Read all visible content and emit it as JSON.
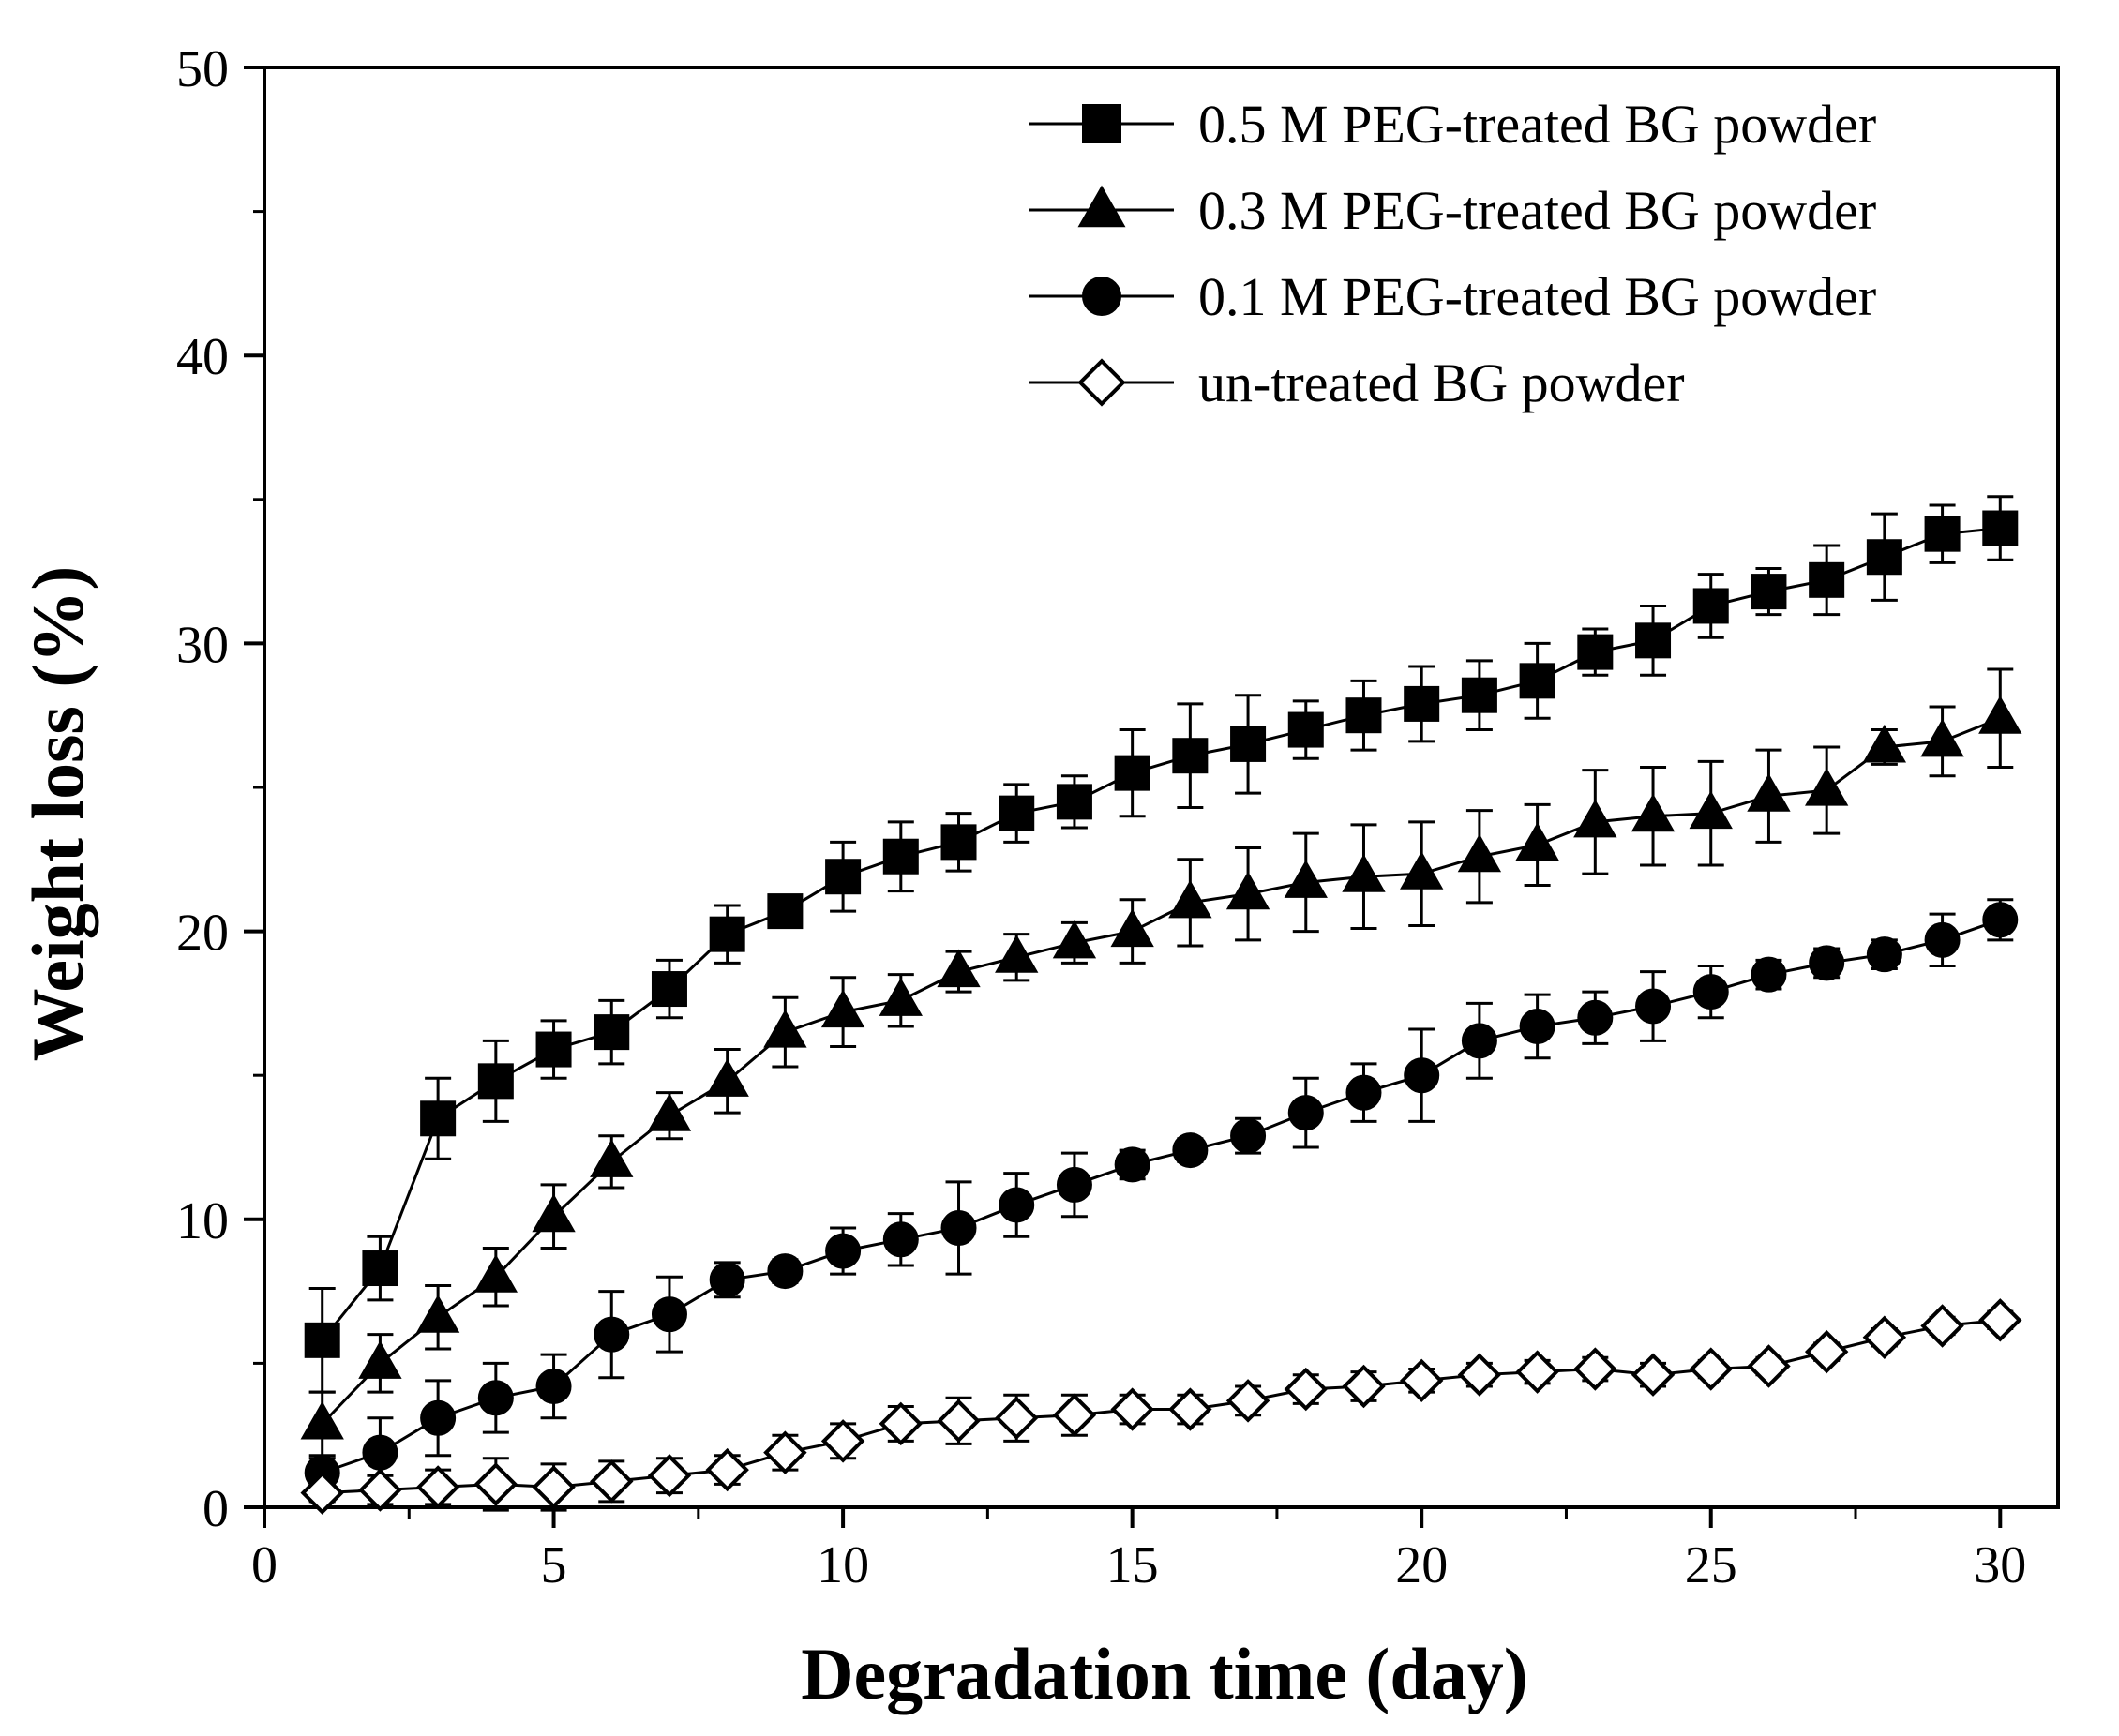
{
  "chart_data": {
    "type": "line",
    "title": "",
    "xlabel": "Degradation time (day)",
    "ylabel": "Weight loss (%)",
    "xlim": [
      0,
      31
    ],
    "ylim": [
      0,
      50
    ],
    "xticks": [
      0,
      5,
      10,
      15,
      20,
      25,
      30
    ],
    "xtick_labels": [
      "0",
      "5",
      "10",
      "15",
      "20",
      "25",
      "30"
    ],
    "yticks": [
      0,
      10,
      20,
      30,
      40,
      50
    ],
    "ytick_labels": [
      "0",
      "10",
      "20",
      "30",
      "40",
      "50"
    ],
    "grid": false,
    "legend_position": "top-right",
    "x": [
      1,
      2,
      3,
      4,
      5,
      6,
      7,
      8,
      9,
      10,
      11,
      12,
      13,
      14,
      15,
      16,
      17,
      18,
      19,
      20,
      21,
      22,
      23,
      24,
      25,
      26,
      27,
      28,
      29,
      30
    ],
    "series": [
      {
        "name": "0.5 M PEG-treated BG powder",
        "marker": "square",
        "filled": true,
        "values": [
          5.8,
          8.3,
          13.5,
          14.8,
          15.9,
          16.5,
          18.0,
          19.9,
          20.7,
          21.9,
          22.6,
          23.1,
          24.1,
          24.5,
          25.5,
          26.1,
          26.5,
          27.0,
          27.5,
          27.9,
          28.2,
          28.7,
          29.7,
          30.1,
          31.3,
          31.8,
          32.2,
          33.0,
          33.8,
          34.0
        ],
        "errors": [
          1.8,
          1.1,
          1.4,
          1.4,
          1.0,
          1.1,
          1.0,
          1.0,
          0.5,
          1.2,
          1.2,
          1.0,
          1.0,
          0.9,
          1.5,
          1.8,
          1.7,
          1.0,
          1.2,
          1.3,
          1.2,
          1.3,
          0.8,
          1.2,
          1.1,
          0.8,
          1.2,
          1.5,
          1.0,
          1.1
        ]
      },
      {
        "name": "0.3 M PEG-treated BG powder",
        "marker": "triangle",
        "filled": true,
        "values": [
          2.9,
          5.0,
          6.6,
          8.0,
          10.1,
          12.0,
          13.6,
          14.8,
          16.5,
          17.2,
          17.6,
          18.6,
          19.1,
          19.6,
          20.0,
          21.0,
          21.3,
          21.7,
          21.9,
          22.0,
          22.6,
          23.0,
          23.8,
          24.0,
          24.1,
          24.7,
          24.9,
          26.4,
          26.6,
          27.4
        ],
        "errors": [
          1.1,
          1.0,
          1.1,
          1.0,
          1.1,
          0.9,
          0.8,
          1.1,
          1.2,
          1.2,
          0.9,
          0.7,
          0.8,
          0.7,
          1.1,
          1.5,
          1.6,
          1.7,
          1.8,
          1.8,
          1.6,
          1.4,
          1.8,
          1.7,
          1.8,
          1.6,
          1.5,
          0.6,
          1.2,
          1.7
        ]
      },
      {
        "name": "0.1 M PEG-treated BG powder",
        "marker": "circle",
        "filled": true,
        "values": [
          1.2,
          1.9,
          3.1,
          3.8,
          4.2,
          6.0,
          6.7,
          7.9,
          8.2,
          8.9,
          9.3,
          9.7,
          10.5,
          11.2,
          11.9,
          12.4,
          12.9,
          13.7,
          14.4,
          15.0,
          16.2,
          16.7,
          17.0,
          17.4,
          17.9,
          18.5,
          18.9,
          19.2,
          19.7,
          20.4
        ],
        "errors": [
          0.5,
          1.2,
          1.3,
          1.2,
          1.1,
          1.5,
          1.3,
          0.6,
          0.4,
          0.8,
          0.9,
          1.6,
          1.1,
          1.1,
          0.5,
          0.4,
          0.6,
          1.2,
          1.0,
          1.6,
          1.3,
          1.1,
          0.9,
          1.2,
          0.9,
          0.5,
          0.5,
          0.5,
          0.9,
          0.7
        ]
      },
      {
        "name": "un-treated BG powder",
        "marker": "diamond",
        "filled": false,
        "values": [
          0.5,
          0.6,
          0.7,
          0.8,
          0.7,
          0.9,
          1.1,
          1.3,
          1.9,
          2.3,
          2.9,
          3.0,
          3.1,
          3.2,
          3.4,
          3.4,
          3.7,
          4.1,
          4.2,
          4.4,
          4.6,
          4.7,
          4.8,
          4.6,
          4.8,
          4.9,
          5.4,
          5.9,
          6.3,
          6.5
        ],
        "errors": [
          0.3,
          0.5,
          0.6,
          0.9,
          0.8,
          0.7,
          0.6,
          0.5,
          0.6,
          0.6,
          0.6,
          0.8,
          0.8,
          0.7,
          0.5,
          0.5,
          0.5,
          0.5,
          0.5,
          0.4,
          0.4,
          0.4,
          0.4,
          0.4,
          0.3,
          0.3,
          0.3,
          0.3,
          0.3,
          0.3
        ]
      }
    ]
  }
}
